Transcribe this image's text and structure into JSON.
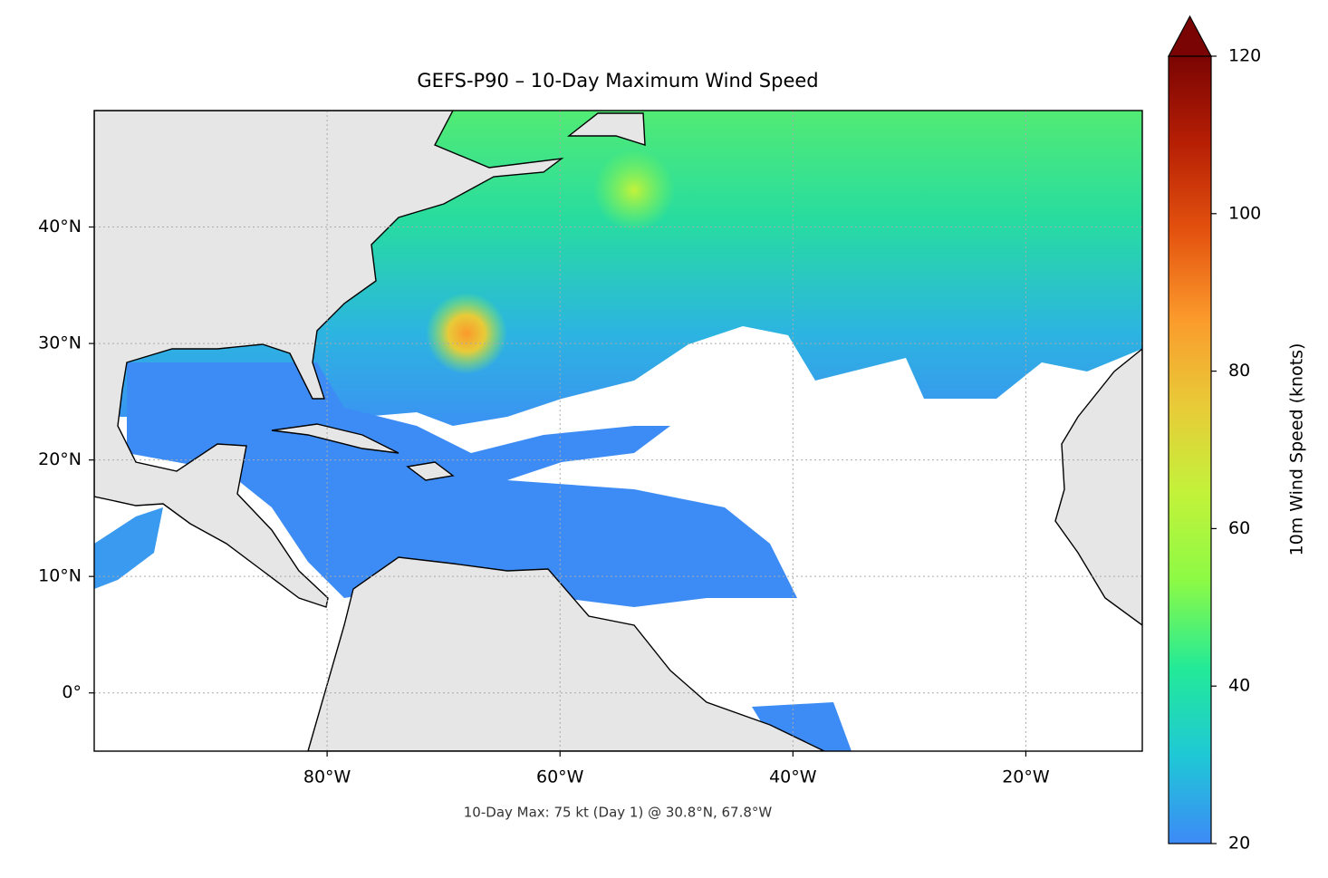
{
  "chart_data": {
    "type": "map",
    "title": "GEFS-P90 – 10-Day Maximum Wind Speed",
    "annotation": "10-Day Max: 75 kt (Day 1) @ 30.8°N, 67.8°W",
    "xlim": [
      -100,
      -10
    ],
    "ylim": [
      -5,
      50
    ],
    "xticks": [
      {
        "value": -80,
        "label": "80°W"
      },
      {
        "value": -60,
        "label": "60°W"
      },
      {
        "value": -40,
        "label": "40°W"
      },
      {
        "value": -20,
        "label": "20°W"
      }
    ],
    "yticks": [
      {
        "value": 0,
        "label": "0°"
      },
      {
        "value": 10,
        "label": "10°N"
      },
      {
        "value": 20,
        "label": "20°N"
      },
      {
        "value": 30,
        "label": "30°N"
      },
      {
        "value": 40,
        "label": "40°N"
      }
    ],
    "grid": true,
    "colorbar": {
      "label": "10m Wind Speed (knots)",
      "lim": [
        20,
        120
      ],
      "ticks": [
        20,
        40,
        60,
        80,
        100,
        120
      ],
      "extend": "max",
      "colors": [
        "#3d8af7",
        "#1fc8d6",
        "#22ea98",
        "#8cfa45",
        "#c3f23a",
        "#e8cb38",
        "#fb9a2c",
        "#e4520f",
        "#b71f04",
        "#7a0403"
      ]
    }
  }
}
